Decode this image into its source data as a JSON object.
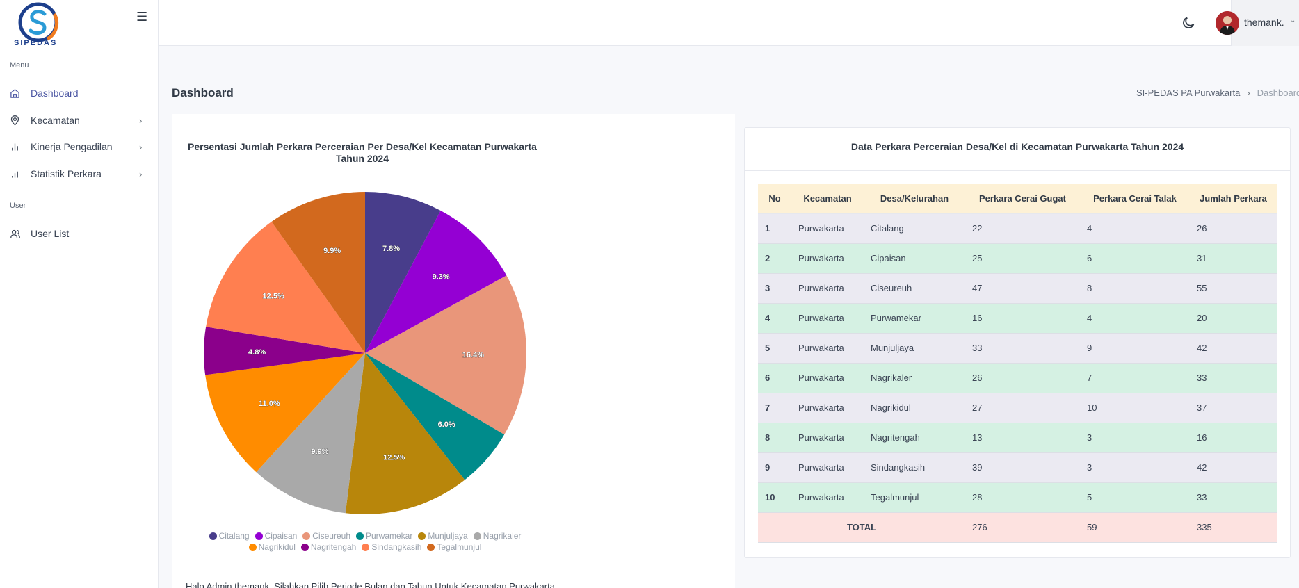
{
  "app": {
    "logo_text": "SIPEDAS"
  },
  "sidebar": {
    "menu_title": "Menu",
    "items": [
      {
        "label": "Dashboard",
        "icon": "home-icon",
        "active": true,
        "has_children": false
      },
      {
        "label": "Kecamatan",
        "icon": "map-pin-icon",
        "active": false,
        "has_children": true
      },
      {
        "label": "Kinerja Pengadilan",
        "icon": "bar-chart-icon",
        "active": false,
        "has_children": true
      },
      {
        "label": "Statistik Perkara",
        "icon": "bar-chart-icon",
        "active": false,
        "has_children": true
      }
    ],
    "user_title": "User",
    "user_items": [
      {
        "label": "User List",
        "icon": "users-icon"
      }
    ]
  },
  "topbar": {
    "user_name": "themank."
  },
  "page": {
    "title": "Dashboard",
    "breadcrumb": [
      "SI-PEDAS PA Purwakarta",
      "Dashboard"
    ],
    "bottom_note": "Halo Admin themank, Silahkan Pilih Periode Bulan dan Tahun Untuk Kecamatan Purwakarta"
  },
  "chart_data": {
    "type": "pie",
    "title_line1": "Persentasi Jumlah Perkara Perceraian Per Desa/Kel Kecamatan Purwakarta",
    "title_line2": "Tahun 2024",
    "labels": [
      "Citalang",
      "Cipaisan",
      "Ciseureuh",
      "Purwamekar",
      "Munjuljaya",
      "Nagrikaler",
      "Nagrikidul",
      "Nagritengah",
      "Sindangkasih",
      "Tegalmunjul"
    ],
    "values": [
      26,
      31,
      55,
      20,
      42,
      33,
      37,
      16,
      42,
      33
    ],
    "percent_labels": [
      "7.8%",
      "9.3%",
      "16.4%",
      "6.0%",
      "12.5%",
      "9.9%",
      "11.0%",
      "4.8%",
      "12.5%",
      "9.9%"
    ],
    "colors": [
      "#483d8b",
      "#9400d3",
      "#e9967a",
      "#008b8b",
      "#b8860b",
      "#a9a9a9",
      "#ff8c00",
      "#8b008b",
      "#ff7f50",
      "#d2691e"
    ],
    "legend_position": "bottom"
  },
  "table": {
    "title": "Data Perkara Perceraian Desa/Kel di Kecamatan Purwakarta Tahun 2024",
    "headers": [
      "No",
      "Kecamatan",
      "Desa/Kelurahan",
      "Perkara Cerai Gugat",
      "Perkara Cerai Talak",
      "Jumlah Perkara"
    ],
    "rows": [
      [
        "1",
        "Purwakarta",
        "Citalang",
        "22",
        "4",
        "26"
      ],
      [
        "2",
        "Purwakarta",
        "Cipaisan",
        "25",
        "6",
        "31"
      ],
      [
        "3",
        "Purwakarta",
        "Ciseureuh",
        "47",
        "8",
        "55"
      ],
      [
        "4",
        "Purwakarta",
        "Purwamekar",
        "16",
        "4",
        "20"
      ],
      [
        "5",
        "Purwakarta",
        "Munjuljaya",
        "33",
        "9",
        "42"
      ],
      [
        "6",
        "Purwakarta",
        "Nagrikaler",
        "26",
        "7",
        "33"
      ],
      [
        "7",
        "Purwakarta",
        "Nagrikidul",
        "27",
        "10",
        "37"
      ],
      [
        "8",
        "Purwakarta",
        "Nagritengah",
        "13",
        "3",
        "16"
      ],
      [
        "9",
        "Purwakarta",
        "Sindangkasih",
        "39",
        "3",
        "42"
      ],
      [
        "10",
        "Purwakarta",
        "Tegalmunjul",
        "28",
        "5",
        "33"
      ]
    ],
    "total": {
      "label": "TOTAL",
      "gugat": "276",
      "talak": "59",
      "jumlah": "335"
    }
  }
}
